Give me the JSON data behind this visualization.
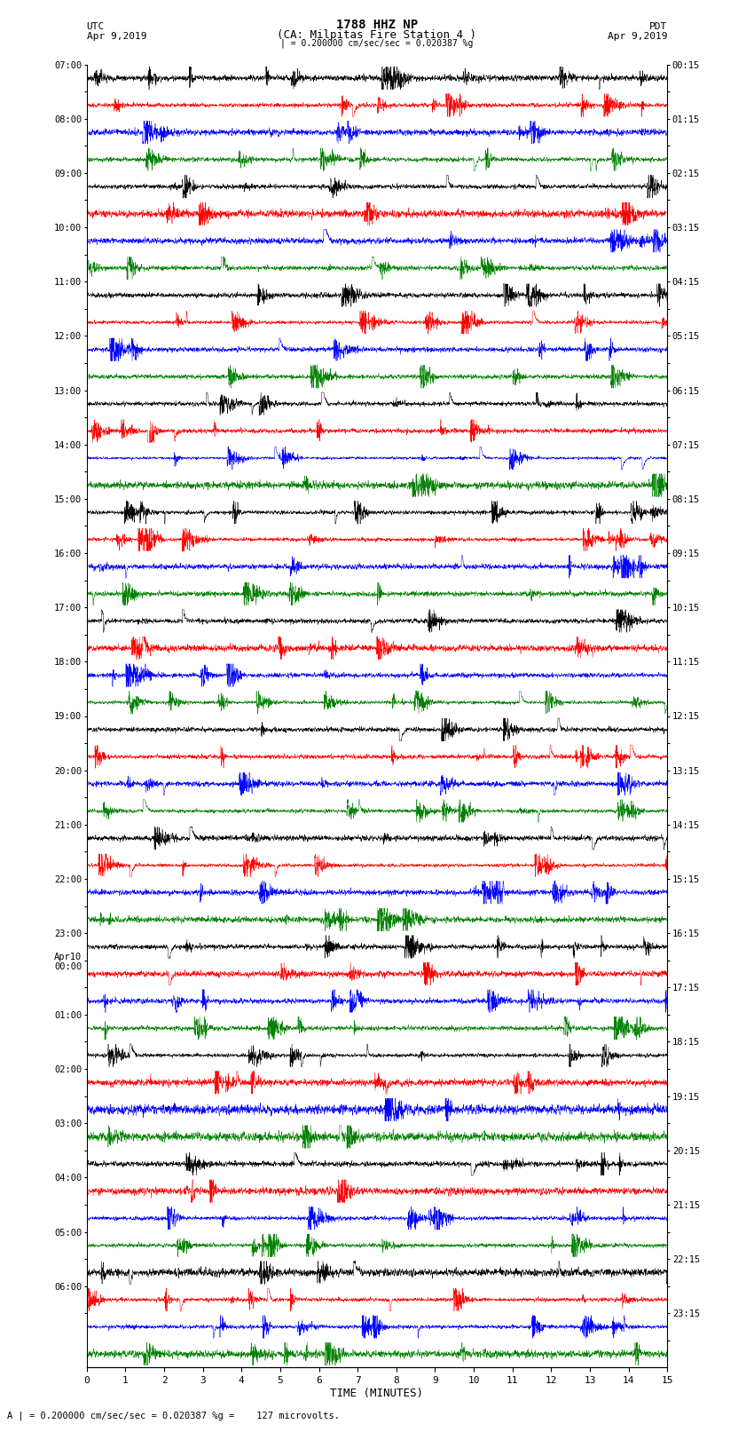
{
  "title_line1": "1788 HHZ NP",
  "title_line2": "(CA: Milpitas Fire Station 4 )",
  "utc_label": "UTC",
  "utc_date": "Apr 9,2019",
  "pdt_label": "PDT",
  "pdt_date": "Apr 9,2019",
  "scale_text": "= 0.200000 cm/sec/sec = 0.020387 %g =    127 microvolts.",
  "xlabel": "TIME (MINUTES)",
  "left_times": [
    "07:00",
    "",
    "08:00",
    "",
    "09:00",
    "",
    "10:00",
    "",
    "11:00",
    "",
    "12:00",
    "",
    "13:00",
    "",
    "14:00",
    "",
    "15:00",
    "",
    "16:00",
    "",
    "17:00",
    "",
    "18:00",
    "",
    "19:00",
    "",
    "20:00",
    "",
    "21:00",
    "",
    "22:00",
    "",
    "23:00",
    "Apr10\n00:00",
    "",
    "01:00",
    "",
    "02:00",
    "",
    "03:00",
    "",
    "04:00",
    "",
    "05:00",
    "",
    "06:00",
    ""
  ],
  "right_times": [
    "00:15",
    "",
    "01:15",
    "",
    "02:15",
    "",
    "03:15",
    "",
    "04:15",
    "",
    "05:15",
    "",
    "06:15",
    "",
    "07:15",
    "",
    "08:15",
    "",
    "09:15",
    "",
    "10:15",
    "",
    "11:15",
    "",
    "12:15",
    "",
    "13:15",
    "",
    "14:15",
    "",
    "15:15",
    "",
    "16:15",
    "",
    "17:15",
    "",
    "18:15",
    "",
    "19:15",
    "",
    "20:15",
    "",
    "21:15",
    "",
    "22:15",
    "",
    "23:15",
    ""
  ],
  "colors": [
    "black",
    "red",
    "blue",
    "green"
  ],
  "n_traces": 48,
  "n_points": 3000,
  "bg_color": "white",
  "xmin": 0,
  "xmax": 15,
  "xticks": [
    0,
    1,
    2,
    3,
    4,
    5,
    6,
    7,
    8,
    9,
    10,
    11,
    12,
    13,
    14,
    15
  ]
}
